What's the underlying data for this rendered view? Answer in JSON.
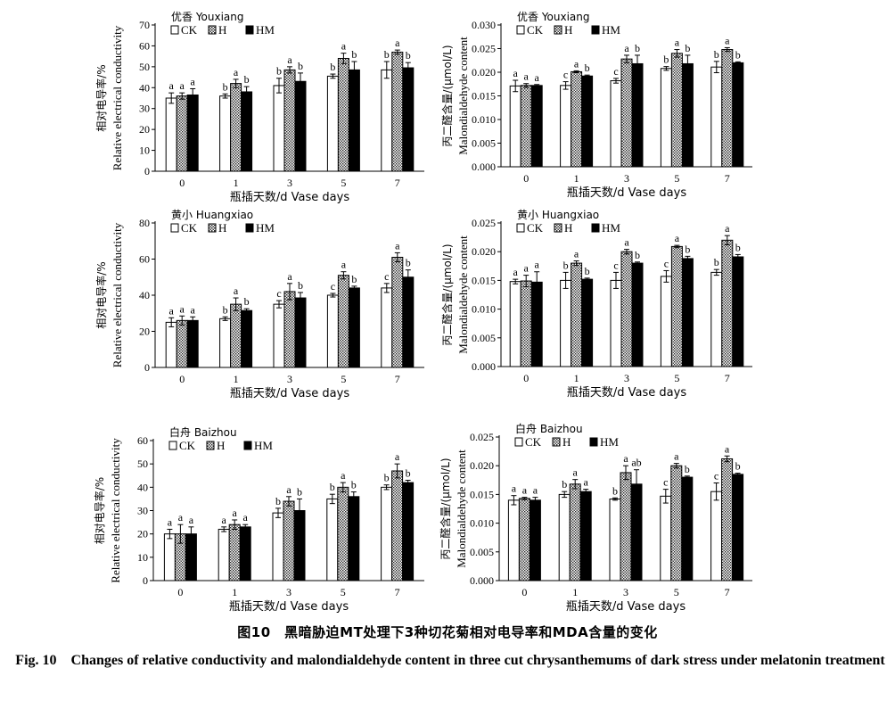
{
  "caption": {
    "cn": "图10　黑暗胁迫MT处理下3种切花菊相对电导率和MDA含量的变化",
    "en": "Fig. 10　Changes of relative conductivity and malondialdehyde content in three cut chrysanthemums of dark stress under melatonin treatment"
  },
  "colors": {
    "CK": "#ffffff",
    "H": "#d9d9d9",
    "HM": "#000000",
    "stroke": "#000000"
  },
  "chart_data": [
    {
      "type": "bar",
      "cultivar": "优香 Youxiang",
      "categories": [
        "0",
        "1",
        "3",
        "5",
        "7"
      ],
      "xlabel": "瓶插天数/d  Vase days",
      "ylabel_cn": "相对电导率/%",
      "ylabel_en": "Relative electrical conductivity",
      "ylim": [
        0,
        70
      ],
      "yticks": [
        "0",
        "10",
        "20",
        "30",
        "40",
        "50",
        "60",
        "70"
      ],
      "legend": [
        "CK",
        "H",
        "HM"
      ],
      "series": [
        {
          "name": "CK",
          "values": [
            35,
            36,
            41,
            45.5,
            48.5
          ],
          "errors": [
            2.5,
            1,
            3.5,
            1,
            4
          ],
          "letters": [
            "a",
            "b",
            "b",
            "b",
            "b"
          ]
        },
        {
          "name": "H",
          "values": [
            36,
            42,
            48.5,
            54,
            57
          ],
          "errors": [
            1.5,
            2,
            1.5,
            2.5,
            1
          ],
          "letters": [
            "a",
            "a",
            "a",
            "a",
            "a"
          ]
        },
        {
          "name": "HM",
          "values": [
            36.5,
            38,
            43,
            48.5,
            49.5
          ],
          "errors": [
            3,
            2.5,
            4,
            4,
            2.5
          ],
          "letters": [
            "a",
            "b",
            "b",
            "b",
            "b"
          ]
        }
      ]
    },
    {
      "type": "bar",
      "cultivar": "优香 Youxiang",
      "categories": [
        "0",
        "1",
        "3",
        "5",
        "7"
      ],
      "xlabel": "瓶插天数/d  Vase days",
      "ylabel_cn": "丙二醛含量/(μmol/L)",
      "ylabel_en": "Malondialdehyde content",
      "ylim": [
        0,
        0.03
      ],
      "yticks": [
        "0.000",
        "0.005",
        "0.010",
        "0.015",
        "0.020",
        "0.025",
        "0.030"
      ],
      "legend": [
        "CK",
        "H",
        "HM"
      ],
      "series": [
        {
          "name": "CK",
          "values": [
            0.0171,
            0.0172,
            0.0182,
            0.0208,
            0.0211
          ],
          "errors": [
            0.0012,
            0.0008,
            0.0005,
            0.0004,
            0.0012
          ],
          "letters": [
            "a",
            "c",
            "c",
            "b",
            "b"
          ]
        },
        {
          "name": "H",
          "values": [
            0.0172,
            0.0201,
            0.0228,
            0.024,
            0.0248
          ],
          "errors": [
            0.0004,
            0.0002,
            0.0008,
            0.0008,
            0.0004
          ],
          "letters": [
            "a",
            "a",
            "a",
            "a",
            "a"
          ]
        },
        {
          "name": "HM",
          "values": [
            0.0172,
            0.0192,
            0.0218,
            0.0218,
            0.022
          ],
          "errors": [
            0.0002,
            0.0002,
            0.0018,
            0.0018,
            0.0002
          ],
          "letters": [
            "a",
            "b",
            "b",
            "b",
            "b"
          ]
        }
      ]
    },
    {
      "type": "bar",
      "cultivar": "黄小 Huangxiao",
      "categories": [
        "0",
        "1",
        "3",
        "5",
        "7"
      ],
      "xlabel": "瓶插天数/d  Vase days",
      "ylabel_cn": "相对电导率/%",
      "ylabel_en": "Relative electrical conductivity",
      "ylim": [
        0,
        80
      ],
      "yticks": [
        "0",
        "20",
        "40",
        "60",
        "80"
      ],
      "legend": [
        "CK",
        "H",
        "HM"
      ],
      "series": [
        {
          "name": "CK",
          "values": [
            25,
            27,
            35,
            40,
            44
          ],
          "errors": [
            2.5,
            1,
            2,
            1,
            2.5
          ],
          "letters": [
            "a",
            "b",
            "c",
            "c",
            "c"
          ]
        },
        {
          "name": "H",
          "values": [
            26,
            35,
            42,
            51,
            61
          ],
          "errors": [
            2.5,
            3.5,
            4.5,
            2,
            2.5
          ],
          "letters": [
            "a",
            "a",
            "a",
            "a",
            "a"
          ]
        },
        {
          "name": "HM",
          "values": [
            26,
            31.5,
            38.5,
            44,
            50
          ],
          "errors": [
            2,
            1,
            3,
            1,
            4
          ],
          "letters": [
            "a",
            "b",
            "b",
            "b",
            "b"
          ]
        }
      ]
    },
    {
      "type": "bar",
      "cultivar": "黄小 Huangxiao",
      "categories": [
        "0",
        "1",
        "3",
        "5",
        "7"
      ],
      "xlabel": "瓶插天数/d  Vase days",
      "ylabel_cn": "丙二醛含量/(μmol/L)",
      "ylabel_en": "Malondialdehyde content",
      "ylim": [
        0,
        0.025
      ],
      "yticks": [
        "0.000",
        "0.005",
        "0.010",
        "0.015",
        "0.020",
        "0.025"
      ],
      "legend": [
        "CK",
        "H",
        "HM"
      ],
      "series": [
        {
          "name": "CK",
          "values": [
            0.0148,
            0.015,
            0.015,
            0.0157,
            0.0164
          ],
          "errors": [
            0.0004,
            0.0014,
            0.0014,
            0.001,
            0.0005
          ],
          "letters": [
            "a",
            "b",
            "c",
            "c",
            "b"
          ]
        },
        {
          "name": "H",
          "values": [
            0.0149,
            0.018,
            0.02,
            0.0209,
            0.022
          ],
          "errors": [
            0.001,
            0.0004,
            0.0004,
            0.0002,
            0.0008
          ],
          "letters": [
            "a",
            "a",
            "a",
            "a",
            "a"
          ]
        },
        {
          "name": "HM",
          "values": [
            0.0147,
            0.0152,
            0.018,
            0.0188,
            0.0191
          ],
          "errors": [
            0.0018,
            0.0002,
            0.0002,
            0.0004,
            0.0004
          ],
          "letters": [
            "a",
            "b",
            "b",
            "b",
            "b"
          ]
        }
      ]
    },
    {
      "type": "bar",
      "cultivar": "白舟 Baizhou",
      "categories": [
        "0",
        "1",
        "3",
        "5",
        "7"
      ],
      "xlabel": "瓶插天数/d  Vase days",
      "ylabel_cn": "相对电导率/%",
      "ylabel_en": "Relative electrical conductivity",
      "ylim": [
        0,
        60
      ],
      "yticks": [
        "0",
        "10",
        "20",
        "30",
        "40",
        "50",
        "60"
      ],
      "legend": [
        "CK",
        "H",
        "HM"
      ],
      "series": [
        {
          "name": "CK",
          "values": [
            20,
            22,
            29,
            35,
            40
          ],
          "errors": [
            2,
            1,
            2,
            2,
            1
          ],
          "letters": [
            "a",
            "a",
            "b",
            "b",
            "b"
          ]
        },
        {
          "name": "H",
          "values": [
            20,
            24,
            34,
            40,
            47
          ],
          "errors": [
            4,
            2,
            2,
            2,
            3
          ],
          "letters": [
            "a",
            "a",
            "a",
            "a",
            "a"
          ]
        },
        {
          "name": "HM",
          "values": [
            20,
            23,
            30,
            36,
            42
          ],
          "errors": [
            3,
            1,
            5,
            2,
            1
          ],
          "letters": [
            "a",
            "a",
            "b",
            "b",
            "b"
          ]
        }
      ]
    },
    {
      "type": "bar",
      "cultivar": "白舟 Baizhou",
      "categories": [
        "0",
        "1",
        "3",
        "5",
        "7"
      ],
      "xlabel": "瓶插天数/d  Vase days",
      "ylabel_cn": "丙二醛含量/(μmol/L)",
      "ylabel_en": "Malondialdehyde content",
      "ylim": [
        0,
        0.025
      ],
      "yticks": [
        "0.000",
        "0.005",
        "0.010",
        "0.015",
        "0.020",
        "0.025"
      ],
      "legend": [
        "CK",
        "H",
        "HM"
      ],
      "series": [
        {
          "name": "CK",
          "values": [
            0.014,
            0.015,
            0.0142,
            0.0147,
            0.0155
          ],
          "errors": [
            0.0008,
            0.0005,
            0.0002,
            0.0012,
            0.0015
          ],
          "letters": [
            "a",
            "b",
            "b",
            "c",
            "c"
          ]
        },
        {
          "name": "H",
          "values": [
            0.0143,
            0.0168,
            0.0188,
            0.02,
            0.0212
          ],
          "errors": [
            0.0002,
            0.0008,
            0.0012,
            0.0004,
            0.0005
          ],
          "letters": [
            "a",
            "a",
            "a",
            "a",
            "a"
          ]
        },
        {
          "name": "HM",
          "values": [
            0.014,
            0.0155,
            0.0168,
            0.018,
            0.0185
          ],
          "errors": [
            0.0005,
            0.0004,
            0.0025,
            0.0002,
            0.0002
          ],
          "letters": [
            "a",
            "a",
            "ab",
            "b",
            "b"
          ]
        }
      ]
    }
  ]
}
